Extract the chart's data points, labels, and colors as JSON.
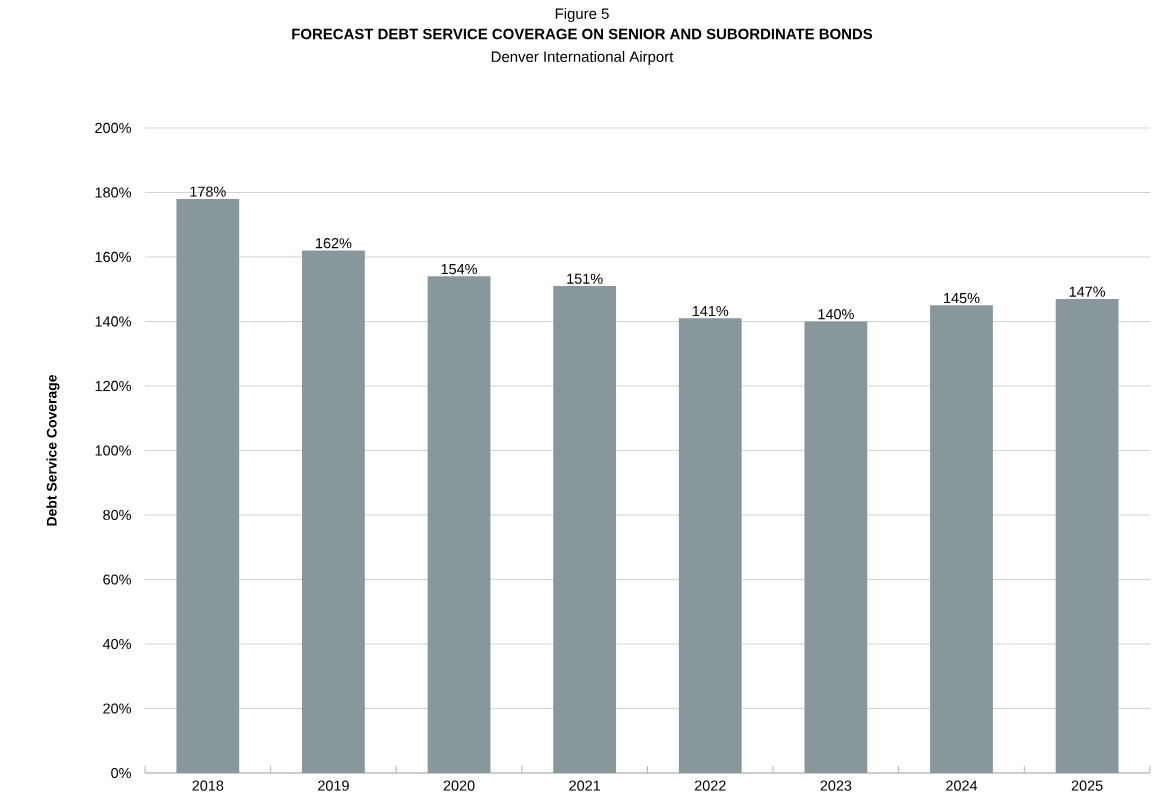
{
  "chart_data": {
    "type": "bar",
    "title": "Figure 5",
    "subtitle": "FORECAST DEBT SERVICE COVERAGE ON SENIOR AND SUBORDINATE BONDS",
    "annotations": [
      "Denver International Airport"
    ],
    "ylabel": "Debt Service Coverage",
    "categories": [
      "2018",
      "2019",
      "2020",
      "2021",
      "2022",
      "2023",
      "2024",
      "2025"
    ],
    "values": [
      178,
      162,
      154,
      151,
      141,
      140,
      145,
      147
    ],
    "value_labels": [
      "178%",
      "162%",
      "154%",
      "151%",
      "141%",
      "140%",
      "145%",
      "147%"
    ],
    "color": "#87979c",
    "ylim": [
      0,
      200
    ],
    "yticks": [
      {
        "value": 0,
        "label": "0%"
      },
      {
        "value": 20,
        "label": "20%"
      },
      {
        "value": 40,
        "label": "40%"
      },
      {
        "value": 60,
        "label": "60%"
      },
      {
        "value": 80,
        "label": "80%"
      },
      {
        "value": 100,
        "label": "100%"
      },
      {
        "value": 120,
        "label": "120%"
      },
      {
        "value": 140,
        "label": "140%"
      },
      {
        "value": 160,
        "label": "160%"
      },
      {
        "value": 180,
        "label": "180%"
      },
      {
        "value": 200,
        "label": "200%"
      }
    ],
    "grid": "y"
  }
}
